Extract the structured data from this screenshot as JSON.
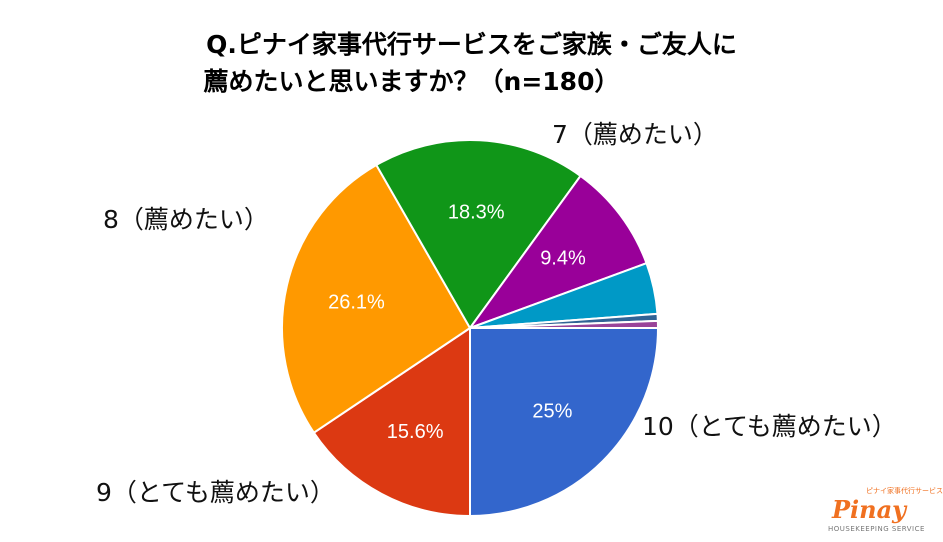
{
  "chart_data": {
    "type": "pie",
    "title": "Q.ピナイ家事代行サービスをご家族・ご友人に薦めたいと思いますか？（n=180）",
    "title_lines": [
      "Q.ピナイ家事代行サービスをご家族・ご友人に",
      "薦めたいと思いますか？（n=180）"
    ],
    "slices": [
      {
        "label": "10（とても薦めたい）",
        "value": 25.0,
        "data_label": "25%",
        "color": "#3366cc"
      },
      {
        "label": "9（とても薦めたい）",
        "value": 15.6,
        "data_label": "15.6%",
        "color": "#dc3912"
      },
      {
        "label": "8（薦めたい）",
        "value": 26.1,
        "data_label": "26.1%",
        "color": "#ff9900"
      },
      {
        "label": "7（薦めたい）",
        "value": 18.3,
        "data_label": "18.3%",
        "color": "#109618"
      },
      {
        "label": "",
        "value": 9.4,
        "data_label": "9.4%",
        "color": "#990099"
      },
      {
        "label": "",
        "value": 4.4,
        "data_label": "",
        "color": "#0099c6"
      },
      {
        "label": "",
        "value": 0.6,
        "data_label": "",
        "color": "#316395"
      },
      {
        "label": "",
        "value": 0.6,
        "data_label": "",
        "color": "#994499"
      }
    ],
    "start": "3 o'clock",
    "direction": "clockwise"
  },
  "logo": {
    "jp": "ピナイ家事代行サービス",
    "name": "Pinay",
    "sub": "HOUSEKEEPING SERVICE"
  }
}
